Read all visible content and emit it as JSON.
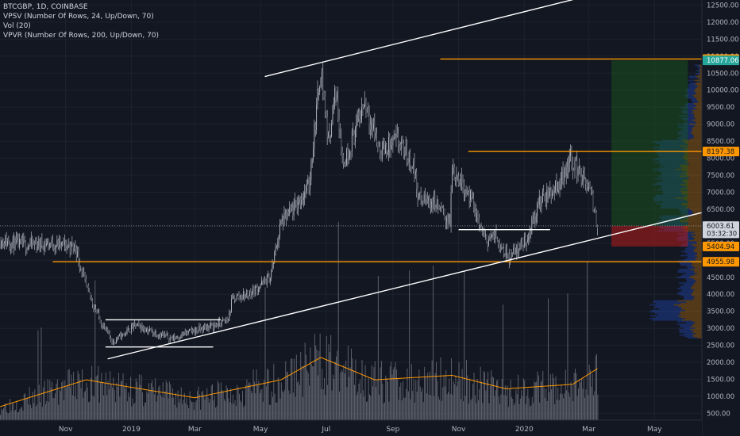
{
  "legend": {
    "symbol": "BTCGBP, 1D, COINBASE",
    "indicators": [
      "VPSV (Number Of Rows, 24, Up/Down, 70)",
      "Vol (20)",
      "VPVR (Number Of Rows, 200, Up/Down, 70)"
    ]
  },
  "chart_data": {
    "type": "candlestick",
    "price_axis": {
      "range": [
        300,
        12650
      ],
      "ticks": [
        "12500.00",
        "12000.00",
        "11500.00",
        "11000.00",
        "10500.00",
        "10000.00",
        "9500.00",
        "9000.00",
        "8500.00",
        "8000.00",
        "7500.00",
        "7000.00",
        "6500.00",
        "6000.00",
        "5500.00",
        "5000.00",
        "4500.00",
        "4000.00",
        "3500.00",
        "3000.00",
        "2500.00",
        "2000.00",
        "1500.00",
        "1000.00",
        "500.00"
      ]
    },
    "time_axis": {
      "start": "2018-09-01",
      "end": "2020-06-14",
      "ticks": [
        {
          "label": "Nov",
          "date": "2018-11-01"
        },
        {
          "label": "2019",
          "date": "2019-01-01"
        },
        {
          "label": "Mar",
          "date": "2019-03-01"
        },
        {
          "label": "May",
          "date": "2019-05-01"
        },
        {
          "label": "Jul",
          "date": "2019-07-01"
        },
        {
          "label": "Sep",
          "date": "2019-09-01"
        },
        {
          "label": "Nov",
          "date": "2019-11-01"
        },
        {
          "label": "2020",
          "date": "2020-01-01"
        },
        {
          "label": "Mar",
          "date": "2020-03-01"
        },
        {
          "label": "May",
          "date": "2020-05-01"
        }
      ]
    },
    "price_path": [
      [
        "2018-09-01",
        5600
      ],
      [
        "2018-09-20",
        5450
      ],
      [
        "2018-10-15",
        5500
      ],
      [
        "2018-11-10",
        5400
      ],
      [
        "2018-11-20",
        4200
      ],
      [
        "2018-12-05",
        3100
      ],
      [
        "2018-12-15",
        2600
      ],
      [
        "2019-01-05",
        3100
      ],
      [
        "2019-01-20",
        2900
      ],
      [
        "2019-02-08",
        2700
      ],
      [
        "2019-02-25",
        2900
      ],
      [
        "2019-03-20",
        3100
      ],
      [
        "2019-04-01",
        3250
      ],
      [
        "2019-04-05",
        3900
      ],
      [
        "2019-04-20",
        4000
      ],
      [
        "2019-05-10",
        4500
      ],
      [
        "2019-05-20",
        6100
      ],
      [
        "2019-06-01",
        6500
      ],
      [
        "2019-06-15",
        7200
      ],
      [
        "2019-06-26",
        10700
      ],
      [
        "2019-07-03",
        8500
      ],
      [
        "2019-07-10",
        10000
      ],
      [
        "2019-07-17",
        7800
      ],
      [
        "2019-08-06",
        9700
      ],
      [
        "2019-08-20",
        8200
      ],
      [
        "2019-09-05",
        8500
      ],
      [
        "2019-09-20",
        7800
      ],
      [
        "2019-09-25",
        6800
      ],
      [
        "2019-10-10",
        6700
      ],
      [
        "2019-10-24",
        6100
      ],
      [
        "2019-10-26",
        7700
      ],
      [
        "2019-11-10",
        7000
      ],
      [
        "2019-11-25",
        5600
      ],
      [
        "2019-12-05",
        5700
      ],
      [
        "2019-12-18",
        5100
      ],
      [
        "2020-01-03",
        5600
      ],
      [
        "2020-01-15",
        6700
      ],
      [
        "2020-02-01",
        7200
      ],
      [
        "2020-02-13",
        8000
      ],
      [
        "2020-02-25",
        7400
      ],
      [
        "2020-03-03",
        6900
      ],
      [
        "2020-03-09",
        6050
      ]
    ],
    "volume_path": [
      [
        "2018-09-01",
        300
      ],
      [
        "2018-11-20",
        900
      ],
      [
        "2018-12-15",
        800
      ],
      [
        "2019-03-01",
        500
      ],
      [
        "2019-05-20",
        900
      ],
      [
        "2019-06-26",
        1400
      ],
      [
        "2019-08-15",
        900
      ],
      [
        "2019-10-26",
        1000
      ],
      [
        "2019-12-15",
        700
      ],
      [
        "2020-02-15",
        800
      ],
      [
        "2020-03-09",
        1150
      ]
    ],
    "trendlines": [
      {
        "from": [
          "2018-12-10",
          2100
        ],
        "to": [
          "2020-06-14",
          6400
        ]
      },
      {
        "from": [
          "2019-05-05",
          10400
        ],
        "to": [
          "2020-02-20",
          12700
        ]
      },
      {
        "from": [
          "2018-12-08",
          3250
        ],
        "to": [
          "2019-03-25",
          3250
        ]
      },
      {
        "from": [
          "2018-12-08",
          2450
        ],
        "to": [
          "2019-03-18",
          2450
        ]
      },
      {
        "from": [
          "2019-11-01",
          5900
        ],
        "to": [
          "2020-01-25",
          5900
        ]
      }
    ],
    "horizontal_levels": [
      {
        "value": 10915.27,
        "label": "10915.27",
        "color": "#ff9800",
        "from": "2019-10-15"
      },
      {
        "value": 8197.38,
        "label": "8197.38",
        "color": "#ff9800",
        "from": "2019-11-10"
      },
      {
        "value": 4955.98,
        "label": "4955.98",
        "color": "#ff9800",
        "from": "2018-10-20"
      }
    ],
    "price_labels": [
      {
        "value": 10877.06,
        "label": "10877.06",
        "bg": "#26a69a",
        "fg": "#ffffff"
      },
      {
        "value": 6011.43,
        "label": "6011.43",
        "bg": "#363a45",
        "fg": "#d1d4dc"
      },
      {
        "value": 6003.61,
        "label": "6003.61",
        "bg": "#d1d4dc",
        "fg": "#131722"
      },
      {
        "value": 5790,
        "label": "03:32:30",
        "bg": "#d1d4dc",
        "fg": "#131722"
      },
      {
        "value": 5404.94,
        "label": "5404.94",
        "bg": "#ff9800",
        "fg": "#131722"
      }
    ],
    "crosshair_price": 6011.43,
    "position_tool": {
      "from": "2020-03-22",
      "to": "2020-06-01",
      "entry": 6011.43,
      "target": 10877.06,
      "stop": 5404.94
    },
    "colors": {
      "background": "#131722",
      "candles": "#b2b5be",
      "trendline": "#ffffff",
      "volume_bars": "#787b86",
      "volume_ma": "#ff9800",
      "profile_up": "#2962ff",
      "profile_down": "#ff9800",
      "target_zone": "#1b5e20",
      "stop_zone": "#b71c1c",
      "axis_text": "#b2b5be"
    }
  }
}
